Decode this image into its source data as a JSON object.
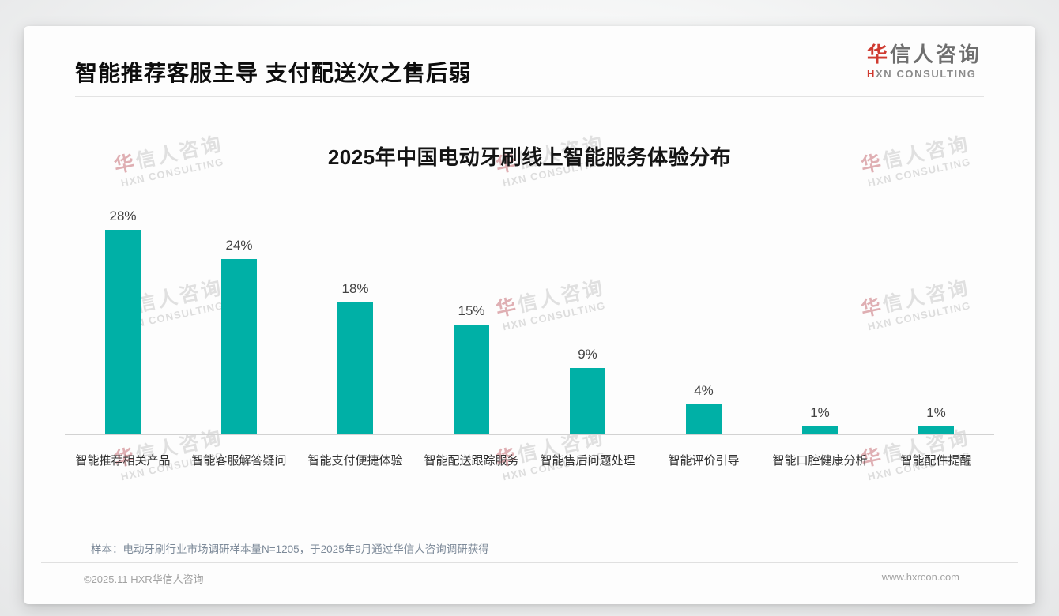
{
  "header": {
    "title": "智能推荐客服主导 支付配送次之售后弱"
  },
  "logo": {
    "cn_first": "华",
    "cn_rest": "信人咨询",
    "en_first": "H",
    "en_rest": "XN CONSULTING"
  },
  "chart_data": {
    "type": "bar",
    "title": "2025年中国电动牙刷线上智能服务体验分布",
    "categories": [
      "智能推荐相关产品",
      "智能客服解答疑问",
      "智能支付便捷体验",
      "智能配送跟踪服务",
      "智能售后问题处理",
      "智能评价引导",
      "智能口腔健康分析",
      "智能配件提醒"
    ],
    "values": [
      28,
      24,
      18,
      15,
      9,
      4,
      1,
      1
    ],
    "data_labels": [
      "28%",
      "24%",
      "18%",
      "15%",
      "9%",
      "4%",
      "1%",
      "1%"
    ],
    "unit": "%",
    "xlabel": "",
    "ylabel": "",
    "ylim": [
      0,
      30
    ],
    "grid": false,
    "legend": null,
    "bar_color": "#00b0a6",
    "axis_line_color": "#d2d2d2"
  },
  "watermark": {
    "cn_first": "华",
    "cn_rest": "信人咨询",
    "en": "HXN CONSULTING"
  },
  "footnote": "样本：电动牙刷行业市场调研样本量N=1205，于2025年9月通过华信人咨询调研获得",
  "footer": {
    "left": "©2025.11 HXR华信人咨询",
    "right": "www.hxrcon.com"
  }
}
